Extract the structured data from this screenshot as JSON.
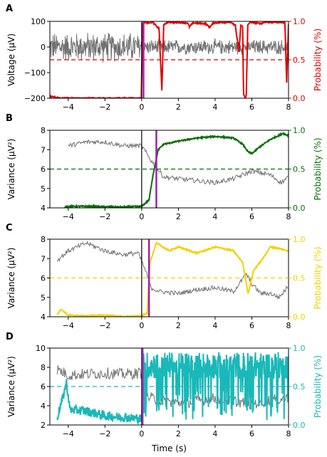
{
  "chart_data": [
    {
      "panel_label": "A",
      "type": "line",
      "xlim": [
        -5,
        8
      ],
      "x_ticks": [
        -4,
        -2,
        0,
        2,
        4,
        6,
        8
      ],
      "x_tick_labels": [
        "−4",
        "−2",
        "0",
        "2",
        "4",
        "6",
        "8"
      ],
      "ylabel_left": "Voltage (μV)",
      "ylim_left": [
        -200,
        100
      ],
      "y_ticks_left": [
        -200,
        -100,
        0,
        100
      ],
      "y_tick_labels_left": [
        "−200",
        "−100",
        "0",
        "100"
      ],
      "ylabel_right": "Probability (%)",
      "ylim_right": [
        0,
        1
      ],
      "y_ticks_right": [
        0,
        0.5,
        1
      ],
      "y_tick_labels_right": [
        "0.0",
        "0.5",
        "1.0"
      ],
      "threshold": 0.5,
      "onset_time": 0,
      "detection_time": 0.1,
      "series_color": "#e00000",
      "signal_kind": "voltage",
      "prob_keypoints": [
        [
          -5,
          0.02
        ],
        [
          -4.3,
          0.0
        ],
        [
          -4.2,
          0.0
        ],
        [
          -0.02,
          0.0
        ],
        [
          0.05,
          0.97
        ],
        [
          0.12,
          0.99
        ],
        [
          0.3,
          0.98
        ],
        [
          0.6,
          0.99
        ],
        [
          0.95,
          0.9
        ],
        [
          1.1,
          0.1
        ],
        [
          1.2,
          0.95
        ],
        [
          1.4,
          0.99
        ],
        [
          2.5,
          0.98
        ],
        [
          2.6,
          0.93
        ],
        [
          2.8,
          0.98
        ],
        [
          3.5,
          0.97
        ],
        [
          3.7,
          0.92
        ],
        [
          3.9,
          0.98
        ],
        [
          4.8,
          0.99
        ],
        [
          5.1,
          0.95
        ],
        [
          5.3,
          0.6
        ],
        [
          5.4,
          0.95
        ],
        [
          5.5,
          0.93
        ],
        [
          5.55,
          0.05
        ],
        [
          5.65,
          0.0
        ],
        [
          5.7,
          0.05
        ],
        [
          5.78,
          0.95
        ],
        [
          5.9,
          0.99
        ],
        [
          6.5,
          0.97
        ],
        [
          6.7,
          0.99
        ],
        [
          7.8,
          0.99
        ],
        [
          7.9,
          0.2
        ],
        [
          8,
          0.97
        ]
      ]
    },
    {
      "panel_label": "B",
      "type": "line",
      "xlim": [
        -5,
        8
      ],
      "x_ticks": [
        -4,
        -2,
        0,
        2,
        4,
        6,
        8
      ],
      "x_tick_labels": [
        "−4",
        "−2",
        "0",
        "2",
        "4",
        "6",
        "8"
      ],
      "ylabel_left": "Variance (μV²)",
      "ylim_left": [
        4,
        8
      ],
      "y_ticks_left": [
        4,
        5,
        6,
        7,
        8
      ],
      "y_tick_labels_left": [
        "4",
        "5",
        "6",
        "7",
        "8"
      ],
      "ylabel_right": "Probability (%)",
      "ylim_right": [
        0,
        1
      ],
      "y_ticks_right": [
        0,
        0.5,
        1
      ],
      "y_tick_labels_right": [
        "0.0",
        "0.5",
        "1.0"
      ],
      "threshold": 0.5,
      "onset_time": 0,
      "detection_time": 0.8,
      "series_color": "#0a6e0a",
      "signal_kind": "variance",
      "variance_keypoints": [
        [
          -4,
          7.2
        ],
        [
          -3,
          7.4
        ],
        [
          -2,
          7.4
        ],
        [
          -1,
          7.2
        ],
        [
          0,
          7.2
        ],
        [
          0.4,
          6.6
        ],
        [
          0.7,
          6.2
        ],
        [
          1.2,
          5.6
        ],
        [
          2,
          5.5
        ],
        [
          3,
          5.4
        ],
        [
          4,
          5.3
        ],
        [
          5,
          5.5
        ],
        [
          6,
          5.9
        ],
        [
          7,
          5.7
        ],
        [
          7.6,
          5.3
        ],
        [
          8,
          5.6
        ]
      ],
      "prob_keypoints": [
        [
          -4.2,
          0.0
        ],
        [
          -4,
          0.02
        ],
        [
          -3,
          0.02
        ],
        [
          -1,
          0.01
        ],
        [
          0,
          0.02
        ],
        [
          0.4,
          0.1
        ],
        [
          0.6,
          0.4
        ],
        [
          0.9,
          0.75
        ],
        [
          1.2,
          0.82
        ],
        [
          2,
          0.86
        ],
        [
          3,
          0.9
        ],
        [
          4,
          0.92
        ],
        [
          5,
          0.9
        ],
        [
          5.5,
          0.82
        ],
        [
          5.8,
          0.72
        ],
        [
          6.0,
          0.7
        ],
        [
          6.4,
          0.78
        ],
        [
          7,
          0.88
        ],
        [
          7.7,
          0.96
        ],
        [
          8,
          0.93
        ]
      ]
    },
    {
      "panel_label": "C",
      "type": "line",
      "xlim": [
        -5,
        8
      ],
      "x_ticks": [
        -4,
        -2,
        0,
        2,
        4,
        6,
        8
      ],
      "x_tick_labels": [
        "−4",
        "−2",
        "0",
        "2",
        "4",
        "6",
        "8"
      ],
      "ylabel_left": "Variance (μV²)",
      "ylim_left": [
        4,
        8
      ],
      "y_ticks_left": [
        4,
        5,
        6,
        7,
        8
      ],
      "y_tick_labels_left": [
        "4",
        "5",
        "6",
        "7",
        "8"
      ],
      "ylabel_right": "Probability (%)",
      "ylim_right": [
        0,
        1
      ],
      "y_ticks_right": [
        0,
        0.5,
        1
      ],
      "y_tick_labels_right": [
        "0.0",
        "0.5",
        "1.0"
      ],
      "threshold": 0.5,
      "onset_time": 0,
      "detection_time": 0.4,
      "series_color": "#f2d200",
      "signal_kind": "variance",
      "variance_keypoints": [
        [
          -4.6,
          6.9
        ],
        [
          -4,
          7.4
        ],
        [
          -3,
          7.8
        ],
        [
          -2,
          7.4
        ],
        [
          -1,
          7.2
        ],
        [
          -0.2,
          7.3
        ],
        [
          0.2,
          6.4
        ],
        [
          0.5,
          5.5
        ],
        [
          1,
          5.3
        ],
        [
          2,
          5.2
        ],
        [
          3,
          5.4
        ],
        [
          4,
          5.5
        ],
        [
          5,
          5.3
        ],
        [
          5.7,
          6.2
        ],
        [
          6,
          5.7
        ],
        [
          6.5,
          5.2
        ],
        [
          7,
          5.2
        ],
        [
          7.5,
          5.0
        ],
        [
          8,
          5.6
        ]
      ],
      "prob_keypoints": [
        [
          -4.6,
          0.03
        ],
        [
          -4.4,
          0.1
        ],
        [
          -4,
          0.02
        ],
        [
          -3,
          0.01
        ],
        [
          -2,
          0.02
        ],
        [
          -1,
          0.0
        ],
        [
          0,
          0.01
        ],
        [
          0.3,
          0.05
        ],
        [
          0.45,
          0.7
        ],
        [
          0.8,
          0.95
        ],
        [
          1.5,
          0.85
        ],
        [
          2,
          0.9
        ],
        [
          3,
          0.82
        ],
        [
          4,
          0.9
        ],
        [
          5,
          0.85
        ],
        [
          5.5,
          0.7
        ],
        [
          5.8,
          0.3
        ],
        [
          6.1,
          0.6
        ],
        [
          6.6,
          0.75
        ],
        [
          7,
          0.9
        ],
        [
          7.5,
          0.88
        ],
        [
          8,
          0.85
        ]
      ]
    },
    {
      "panel_label": "D",
      "type": "line",
      "xlim": [
        -5,
        8
      ],
      "x_ticks": [
        -4,
        -2,
        0,
        2,
        4,
        6,
        8
      ],
      "x_tick_labels": [
        "−4",
        "−2",
        "0",
        "2",
        "4",
        "6",
        "8"
      ],
      "xlabel": "Time (s)",
      "ylabel_left": "Variance (μV²)",
      "ylim_left": [
        2,
        10
      ],
      "y_ticks_left": [
        2,
        4,
        6,
        8,
        10
      ],
      "y_tick_labels_left": [
        "2",
        "4",
        "6",
        "8",
        "10"
      ],
      "ylabel_right": "Probability (%)",
      "ylim_right": [
        0,
        1
      ],
      "y_ticks_right": [
        0,
        0.5,
        1
      ],
      "y_tick_labels_right": [
        "0.0",
        "0.5",
        "1.0"
      ],
      "threshold": 0.5,
      "onset_time": 0,
      "detection_time": 0.05,
      "series_color": "#1ab8b8",
      "signal_kind": "variance_noisy",
      "variance_keypoints": [
        [
          -4.6,
          7.8
        ],
        [
          -4,
          7.2
        ],
        [
          -3,
          7.3
        ],
        [
          -2,
          7.4
        ],
        [
          -1,
          7.3
        ],
        [
          0,
          7.4
        ],
        [
          0.2,
          5.0
        ],
        [
          1,
          4.5
        ],
        [
          2,
          4.3
        ],
        [
          3,
          4.5
        ],
        [
          4,
          4.8
        ],
        [
          5,
          4.5
        ],
        [
          6,
          4.2
        ],
        [
          7,
          4.6
        ],
        [
          8,
          4.8
        ]
      ],
      "prob_keypoints": [
        [
          -4.6,
          0.1
        ],
        [
          -4.3,
          0.35
        ],
        [
          -4.1,
          0.55
        ],
        [
          -3.9,
          0.2
        ],
        [
          -3,
          0.18
        ],
        [
          -2,
          0.12
        ],
        [
          -1,
          0.1
        ],
        [
          0,
          0.08
        ],
        [
          0.1,
          0.9
        ],
        [
          8,
          0.9
        ]
      ]
    }
  ]
}
